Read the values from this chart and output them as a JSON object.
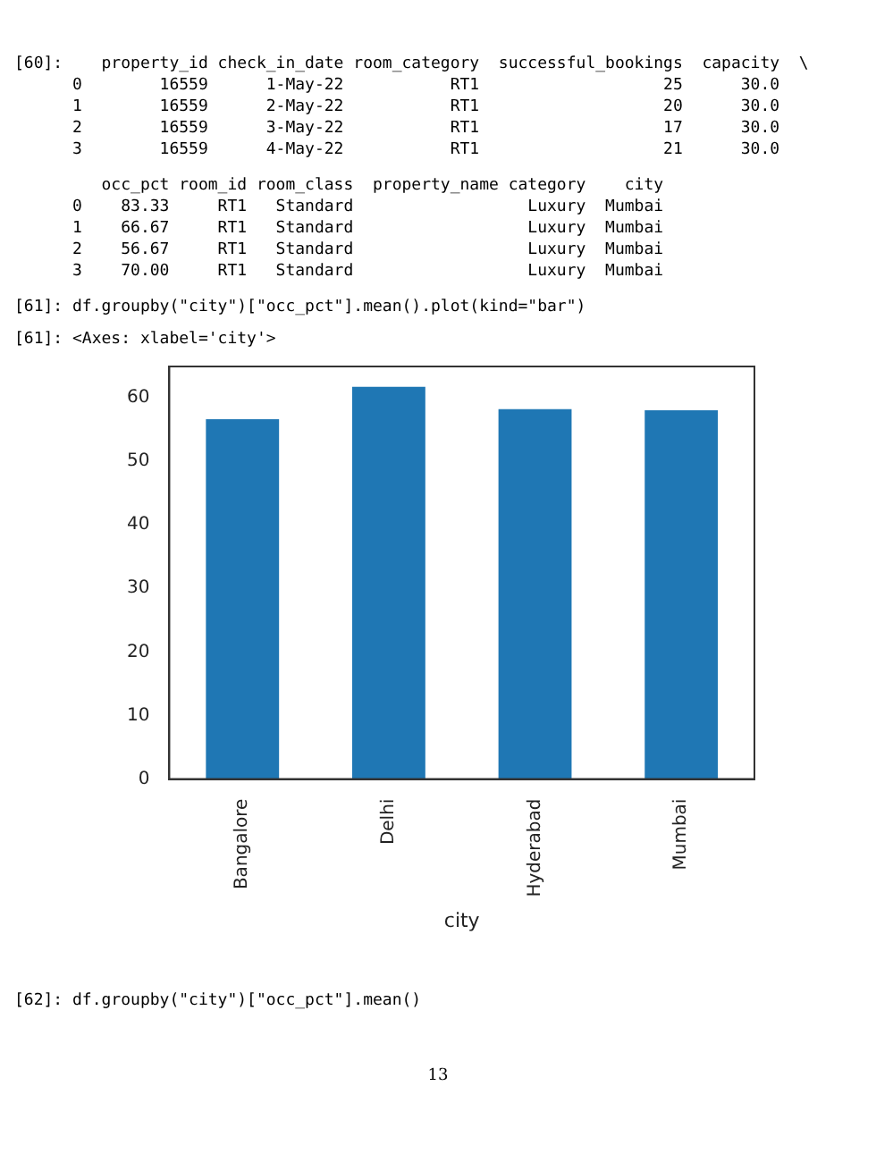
{
  "chart_data": {
    "type": "bar",
    "xlabel": "city",
    "categories": [
      "Bangalore",
      "Delhi",
      "Hyderabad",
      "Mumbai"
    ],
    "values": [
      56.6,
      61.7,
      58.2,
      58.0
    ],
    "color": "#1f77b4",
    "ylim": [
      0,
      64.9
    ],
    "yticks": [
      0,
      10,
      20,
      30,
      40,
      50,
      60
    ],
    "grid": false,
    "legend": false,
    "annotations": [
      "[60]:    property_id check_in_date room_category  successful_bookings  capacity  \\",
      "      0        16559      1-May-22           RT1                   25      30.0",
      "      1        16559      2-May-22           RT1                   20      30.0",
      "      2        16559      3-May-22           RT1                   17      30.0",
      "      3        16559      4-May-22           RT1                   21      30.0",
      "         occ_pct room_id room_class  property_name category    city",
      "      0    83.33     RT1   Standard                  Luxury  Mumbai",
      "      1    66.67     RT1   Standard                  Luxury  Mumbai",
      "      2    56.67     RT1   Standard                  Luxury  Mumbai",
      "      3    70.00     RT1   Standard                  Luxury  Mumbai",
      "[61]: df.groupby(\"city\")[\"occ_pct\"].mean().plot(kind=\"bar\")",
      "[61]: <Axes: xlabel='city'>",
      "[62]: df.groupby(\"city\")[\"occ_pct\"].mean()",
      "13"
    ]
  }
}
